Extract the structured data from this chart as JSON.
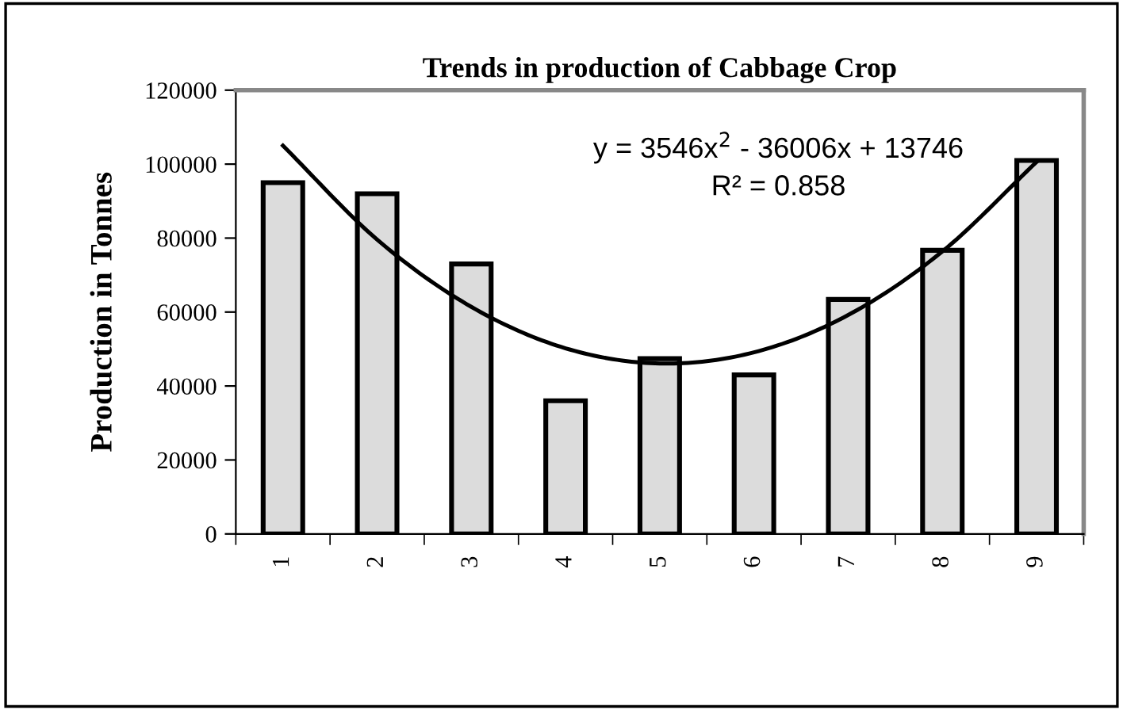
{
  "chart_data": {
    "type": "bar",
    "title": "Trends in production of Cabbage Crop",
    "ylabel": "Production in Tonnes",
    "categories": [
      "1",
      "2",
      "3",
      "4",
      "5",
      "6",
      "7",
      "8",
      "9"
    ],
    "series": [
      {
        "color": "#dcdcdc",
        "values": [
          95000,
          92000,
          73000,
          36000,
          47400,
          43000,
          63400,
          76700,
          101000
        ]
      },
      {
        "type": "line",
        "color": "#000000",
        "values": [
          105000,
          79600,
          61400,
          50200,
          46100,
          49100,
          59200,
          76400,
          100600
        ]
      }
    ],
    "ylim": [
      0,
      120000
    ],
    "yticks": [
      0,
      20000,
      40000,
      60000,
      80000,
      100000,
      120000
    ],
    "grid": false,
    "legend": false,
    "marker": "none",
    "annotations": [
      "y = 3546x$^{2}$ - 36006x + 13746",
      "R² = 0.858"
    ]
  }
}
